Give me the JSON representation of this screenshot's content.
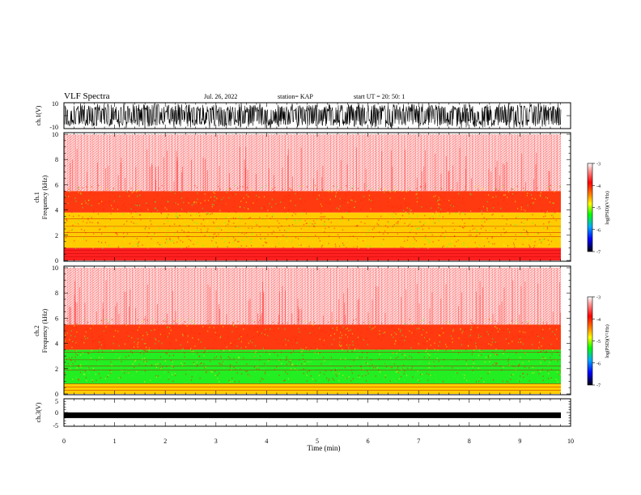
{
  "header": {
    "title": "VLF Spectra",
    "date": "Jul. 26, 2022",
    "station": "station= KAP",
    "start": "start  UT =   20: 50: 1"
  },
  "colorbar": {
    "label": "log(PSD)(V²/Hz)",
    "ticks": [
      "-3",
      "-4",
      "-5",
      "-6",
      "-7"
    ],
    "colors": [
      "#ff0000",
      "#ffff00",
      "#00ff00",
      "#0000ff",
      "#000000"
    ]
  },
  "chart_data": [
    {
      "type": "line",
      "name": "ch1-waveform",
      "ylabel": "ch.1(V)",
      "ylim": [
        -10,
        10
      ],
      "ytick_labels": [
        "10",
        "-10"
      ],
      "xlim": [
        0,
        10
      ],
      "description_values": "noisy waveform oscillating between about -10 and 10 V"
    },
    {
      "type": "heatmap",
      "name": "ch1-spectrogram",
      "ylabel": "Frequency (kHz)",
      "channel_label": "ch.1",
      "ylim": [
        0,
        10
      ],
      "ytick_labels": [
        "0",
        "2",
        "4",
        "6",
        "8",
        "10"
      ],
      "xlim": [
        0,
        10
      ],
      "bands": [
        {
          "from_khz": 0,
          "to_khz": 1.0,
          "level": "-3"
        },
        {
          "from_khz": 1.0,
          "to_khz": 3.8,
          "level": "-4"
        },
        {
          "from_khz": 3.8,
          "to_khz": 5.5,
          "level": "-3.3"
        },
        {
          "from_khz": 5.5,
          "to_khz": 10,
          "level": "-2.5"
        }
      ]
    },
    {
      "type": "heatmap",
      "name": "ch2-spectrogram",
      "ylabel": "Frequency (kHz)",
      "channel_label": "ch.2",
      "ylim": [
        0,
        10
      ],
      "ytick_labels": [
        "0",
        "2",
        "4",
        "6",
        "8",
        "10"
      ],
      "xlim": [
        0,
        10
      ],
      "bands": [
        {
          "from_khz": 0,
          "to_khz": 0.8,
          "level": "-3.5"
        },
        {
          "from_khz": 0.8,
          "to_khz": 3.5,
          "level": "-4.8"
        },
        {
          "from_khz": 3.5,
          "to_khz": 5.5,
          "level": "-3.4"
        },
        {
          "from_khz": 5.5,
          "to_khz": 10,
          "level": "-2.5"
        }
      ]
    },
    {
      "type": "line",
      "name": "ch3-waveform",
      "ylabel": "ch.3(V)",
      "ylim": [
        -5,
        5
      ],
      "ytick_labels": [
        "5",
        "0",
        "-5"
      ],
      "xlim": [
        0,
        10
      ],
      "xlabel": "Time (min)",
      "xtick_labels": [
        "0",
        "1",
        "2",
        "3",
        "4",
        "5",
        "6",
        "7",
        "8",
        "9",
        "10"
      ],
      "level": -1
    }
  ]
}
